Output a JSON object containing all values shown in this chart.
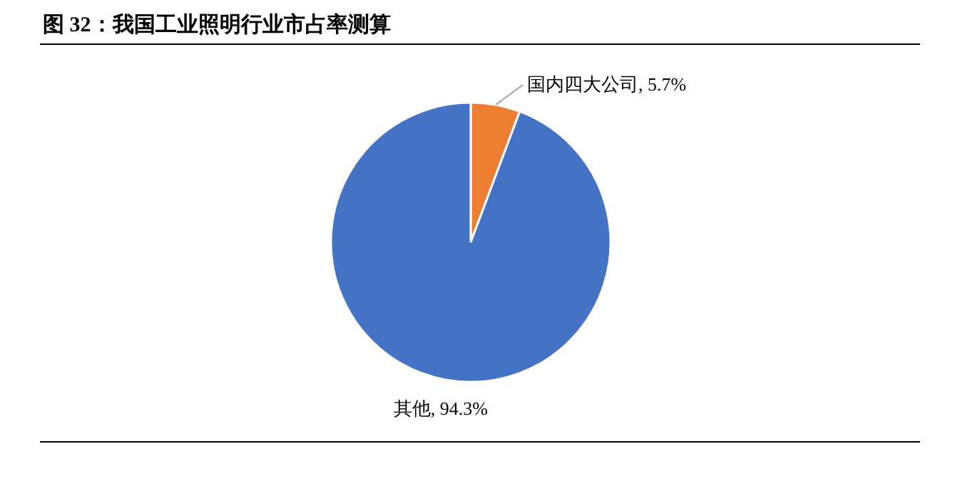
{
  "chart_data": {
    "type": "pie",
    "title": "图 32：我国工业照明行业市占率测算",
    "categories": [
      "国内四大公司",
      "其他"
    ],
    "values": [
      5.7,
      94.3
    ],
    "value_labels": [
      "5.7%",
      "94.3%"
    ],
    "colors": [
      "#ed7d31",
      "#4472c4"
    ]
  }
}
